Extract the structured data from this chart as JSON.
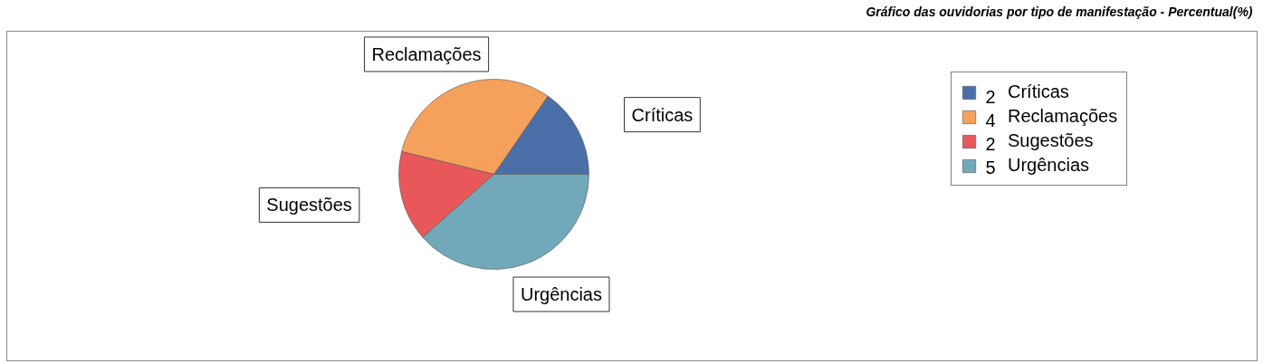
{
  "chart_data": {
    "type": "pie",
    "title": "Gráfico das ouvidorias por tipo de manifestação - Percentual(%)",
    "categories": [
      "Críticas",
      "Reclamações",
      "Sugestões",
      "Urgências"
    ],
    "values": [
      2,
      4,
      2,
      5
    ],
    "colors": [
      "#4a6fa8",
      "#f5a15c",
      "#e8585b",
      "#72a9ba"
    ],
    "data_labels": true,
    "legend": "top right"
  }
}
